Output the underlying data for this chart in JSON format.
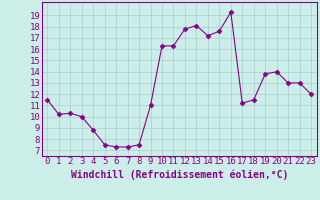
{
  "x": [
    0,
    1,
    2,
    3,
    4,
    5,
    6,
    7,
    8,
    9,
    10,
    11,
    12,
    13,
    14,
    15,
    16,
    17,
    18,
    19,
    20,
    21,
    22,
    23
  ],
  "y": [
    11.5,
    10.2,
    10.3,
    10.0,
    8.8,
    7.5,
    7.3,
    7.3,
    7.5,
    11.0,
    16.3,
    16.3,
    17.8,
    18.1,
    17.2,
    17.6,
    19.3,
    11.2,
    11.5,
    13.8,
    14.0,
    13.0,
    13.0,
    12.0
  ],
  "line_color": "#880088",
  "marker": "D",
  "marker_size": 2.5,
  "bg_color": "#cceee8",
  "grid_color": "#aacccc",
  "xlabel": "Windchill (Refroidissement éolien,°C)",
  "xlabel_fontsize": 7,
  "ylabel_ticks": [
    7,
    8,
    9,
    10,
    11,
    12,
    13,
    14,
    15,
    16,
    17,
    18,
    19
  ],
  "ylim": [
    6.5,
    20.2
  ],
  "xlim": [
    -0.5,
    23.5
  ],
  "tick_fontsize": 6.5
}
